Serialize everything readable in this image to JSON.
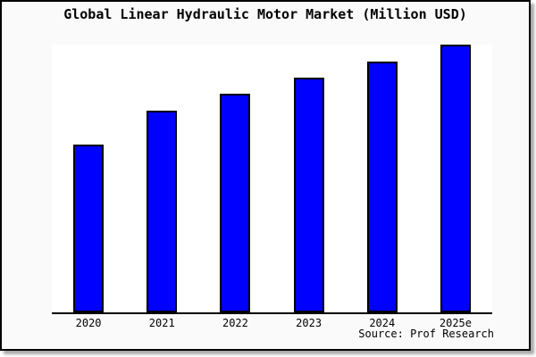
{
  "figure": {
    "background_color": "#fafafa",
    "plot_background_color": "#ffffff",
    "border_color": "#000000",
    "shadow_color": "#a9a9a9"
  },
  "chart_data": {
    "type": "bar",
    "title": "Global Linear Hydraulic Motor Market (Million USD)",
    "categories": [
      "2020",
      "2021",
      "2022",
      "2023",
      "2024",
      "2025e"
    ],
    "values": [
      62.7,
      75.3,
      81.7,
      87.7,
      93.7,
      100
    ],
    "value_note": "No numeric y-axis shown in chart; values estimated as relative index with 2025e = 100",
    "xlabel": "",
    "ylabel": "",
    "ylim": [
      0,
      100
    ],
    "grid": false,
    "legend": false,
    "y_axis_labels_visible": false,
    "bar_color": "#0000ff",
    "bar_edge_color": "#000000",
    "source_note": "Source: Prof Research"
  }
}
